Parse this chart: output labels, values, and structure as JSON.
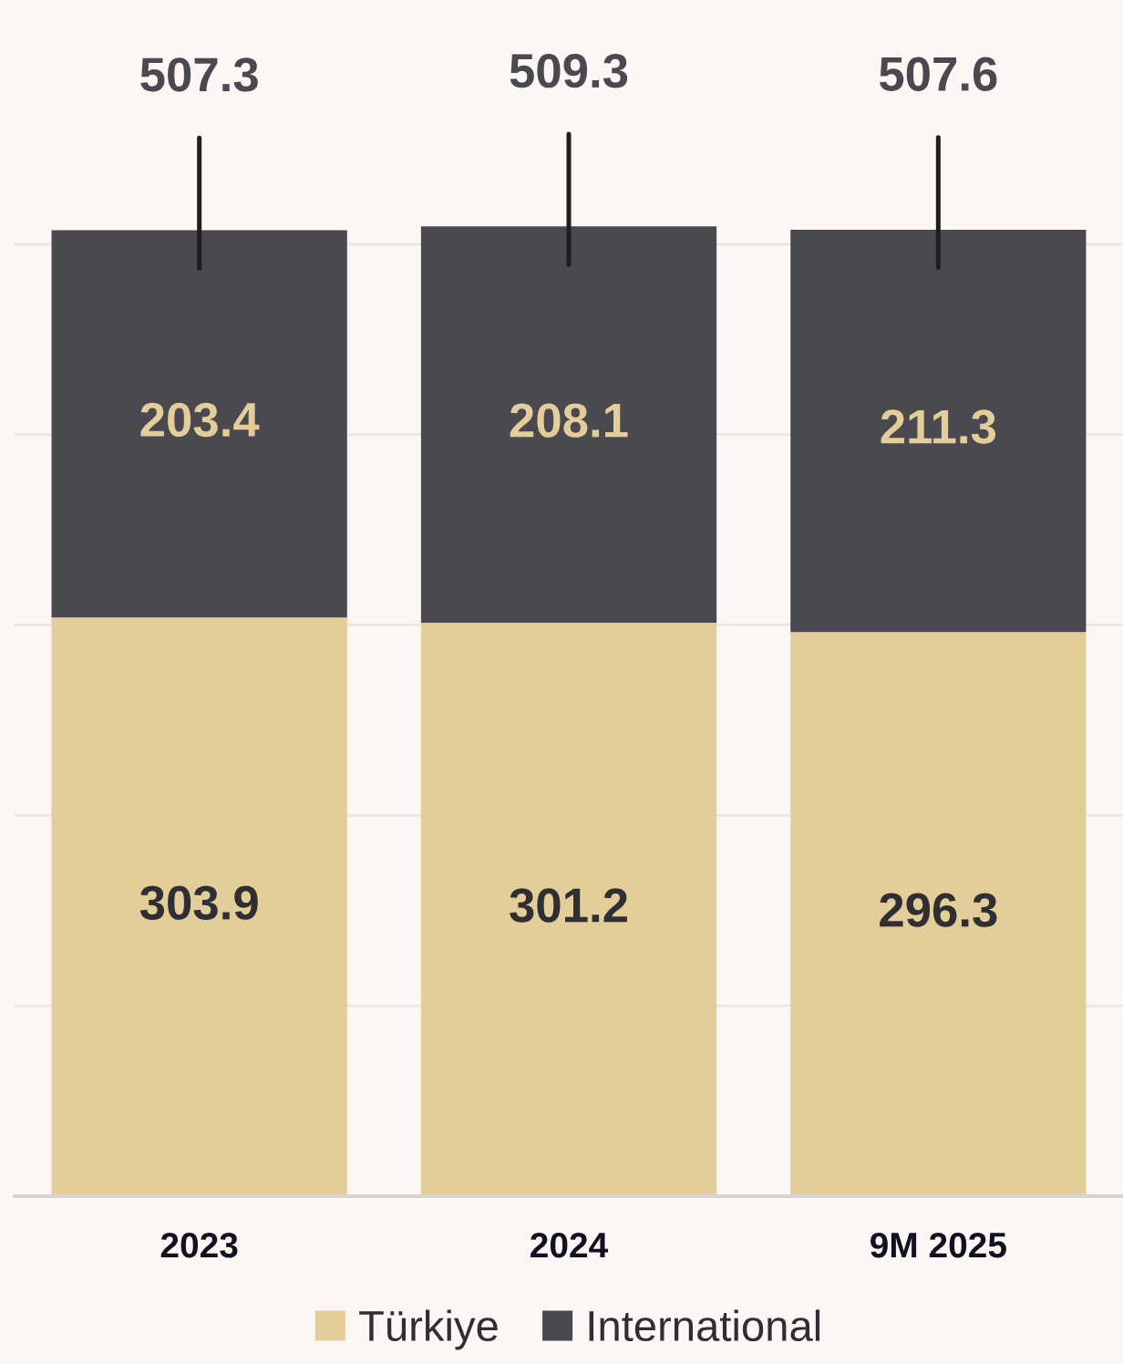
{
  "chart_data": {
    "type": "bar",
    "stacked": true,
    "categories": [
      "2023",
      "2024",
      "9M 2025"
    ],
    "series": [
      {
        "name": "Türkiye",
        "color": "#e3cd99",
        "values": [
          303.9,
          301.2,
          296.3
        ]
      },
      {
        "name": "International",
        "color": "#4a4950",
        "values": [
          203.4,
          208.1,
          211.3
        ]
      }
    ],
    "totals": [
      "507.3",
      "509.3",
      "507.6"
    ],
    "data_labels": true,
    "yticks": [
      {
        "value": 0,
        "label": null
      },
      {
        "value": 100,
        "label": null
      },
      {
        "value": 200,
        "label": null
      },
      {
        "value": 300,
        "label": null
      },
      {
        "value": 400,
        "label": null
      },
      {
        "value": 500,
        "label": null
      }
    ],
    "tick_labels": "x",
    "grid": "y",
    "legend": "bottom"
  }
}
